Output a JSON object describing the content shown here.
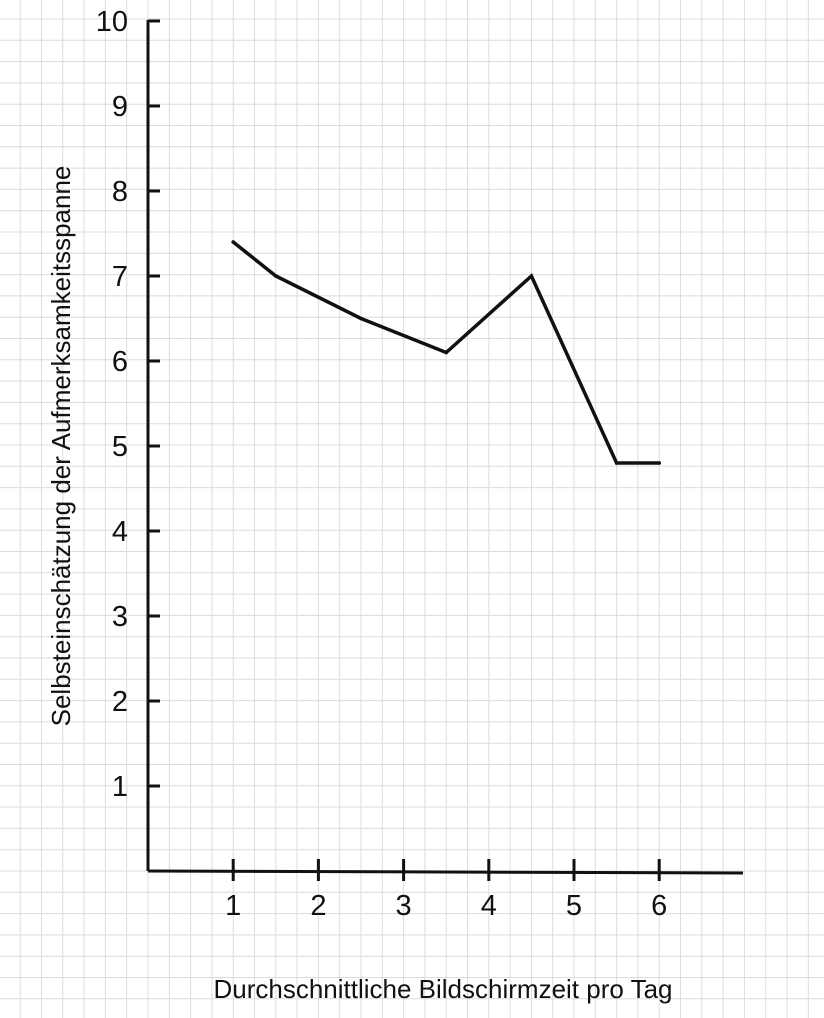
{
  "chart_data": {
    "type": "line",
    "xlabel": "Durchschnittliche Bildschirmzeit pro Tag",
    "ylabel": "Selbsteinschätzung der Aufmerksamkeitsspanne",
    "x_ticks": [
      "1",
      "2",
      "3",
      "4",
      "5",
      "6"
    ],
    "y_ticks": [
      "1",
      "2",
      "3",
      "4",
      "5",
      "6",
      "7",
      "8",
      "9",
      "10"
    ],
    "xlim": [
      0,
      7
    ],
    "ylim": [
      0,
      10
    ],
    "grid": true,
    "legend": "none",
    "series": [
      {
        "x": [
          1,
          1.5,
          2.5,
          3.5,
          4.5,
          5.5,
          6
        ],
        "y": [
          7.4,
          7.0,
          6.5,
          6.1,
          7.0,
          4.8,
          4.8
        ]
      }
    ]
  },
  "colors": {
    "line": "#111111",
    "axis": "#111111",
    "grid": "#dcdcdc",
    "background": "#ffffff"
  }
}
